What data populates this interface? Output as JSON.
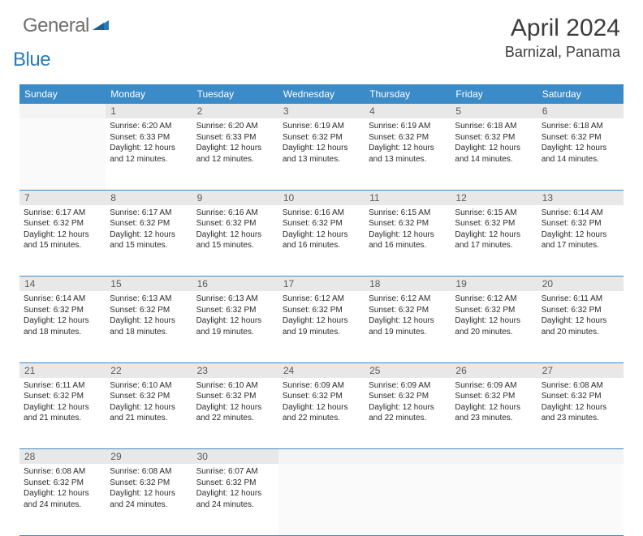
{
  "brand": {
    "word1": "General",
    "word2": "Blue"
  },
  "title": "April 2024",
  "location": "Barnizal, Panama",
  "colors": {
    "header_bg": "#3b8bc8",
    "header_fg": "#ffffff",
    "daynum_bg": "#e8e8e8",
    "daynum_fg": "#5a5a5a",
    "rule": "#3b8bc8",
    "text": "#2b2b2b",
    "logo_gray": "#6f6f6f",
    "logo_blue": "#2a7ab9"
  },
  "weekdays": [
    "Sunday",
    "Monday",
    "Tuesday",
    "Wednesday",
    "Thursday",
    "Friday",
    "Saturday"
  ],
  "weeks": [
    {
      "nums": [
        "",
        "1",
        "2",
        "3",
        "4",
        "5",
        "6"
      ],
      "cells": [
        null,
        {
          "sr": "Sunrise: 6:20 AM",
          "ss": "Sunset: 6:33 PM",
          "d1": "Daylight: 12 hours",
          "d2": "and 12 minutes."
        },
        {
          "sr": "Sunrise: 6:20 AM",
          "ss": "Sunset: 6:33 PM",
          "d1": "Daylight: 12 hours",
          "d2": "and 12 minutes."
        },
        {
          "sr": "Sunrise: 6:19 AM",
          "ss": "Sunset: 6:32 PM",
          "d1": "Daylight: 12 hours",
          "d2": "and 13 minutes."
        },
        {
          "sr": "Sunrise: 6:19 AM",
          "ss": "Sunset: 6:32 PM",
          "d1": "Daylight: 12 hours",
          "d2": "and 13 minutes."
        },
        {
          "sr": "Sunrise: 6:18 AM",
          "ss": "Sunset: 6:32 PM",
          "d1": "Daylight: 12 hours",
          "d2": "and 14 minutes."
        },
        {
          "sr": "Sunrise: 6:18 AM",
          "ss": "Sunset: 6:32 PM",
          "d1": "Daylight: 12 hours",
          "d2": "and 14 minutes."
        }
      ]
    },
    {
      "nums": [
        "7",
        "8",
        "9",
        "10",
        "11",
        "12",
        "13"
      ],
      "cells": [
        {
          "sr": "Sunrise: 6:17 AM",
          "ss": "Sunset: 6:32 PM",
          "d1": "Daylight: 12 hours",
          "d2": "and 15 minutes."
        },
        {
          "sr": "Sunrise: 6:17 AM",
          "ss": "Sunset: 6:32 PM",
          "d1": "Daylight: 12 hours",
          "d2": "and 15 minutes."
        },
        {
          "sr": "Sunrise: 6:16 AM",
          "ss": "Sunset: 6:32 PM",
          "d1": "Daylight: 12 hours",
          "d2": "and 15 minutes."
        },
        {
          "sr": "Sunrise: 6:16 AM",
          "ss": "Sunset: 6:32 PM",
          "d1": "Daylight: 12 hours",
          "d2": "and 16 minutes."
        },
        {
          "sr": "Sunrise: 6:15 AM",
          "ss": "Sunset: 6:32 PM",
          "d1": "Daylight: 12 hours",
          "d2": "and 16 minutes."
        },
        {
          "sr": "Sunrise: 6:15 AM",
          "ss": "Sunset: 6:32 PM",
          "d1": "Daylight: 12 hours",
          "d2": "and 17 minutes."
        },
        {
          "sr": "Sunrise: 6:14 AM",
          "ss": "Sunset: 6:32 PM",
          "d1": "Daylight: 12 hours",
          "d2": "and 17 minutes."
        }
      ]
    },
    {
      "nums": [
        "14",
        "15",
        "16",
        "17",
        "18",
        "19",
        "20"
      ],
      "cells": [
        {
          "sr": "Sunrise: 6:14 AM",
          "ss": "Sunset: 6:32 PM",
          "d1": "Daylight: 12 hours",
          "d2": "and 18 minutes."
        },
        {
          "sr": "Sunrise: 6:13 AM",
          "ss": "Sunset: 6:32 PM",
          "d1": "Daylight: 12 hours",
          "d2": "and 18 minutes."
        },
        {
          "sr": "Sunrise: 6:13 AM",
          "ss": "Sunset: 6:32 PM",
          "d1": "Daylight: 12 hours",
          "d2": "and 19 minutes."
        },
        {
          "sr": "Sunrise: 6:12 AM",
          "ss": "Sunset: 6:32 PM",
          "d1": "Daylight: 12 hours",
          "d2": "and 19 minutes."
        },
        {
          "sr": "Sunrise: 6:12 AM",
          "ss": "Sunset: 6:32 PM",
          "d1": "Daylight: 12 hours",
          "d2": "and 19 minutes."
        },
        {
          "sr": "Sunrise: 6:12 AM",
          "ss": "Sunset: 6:32 PM",
          "d1": "Daylight: 12 hours",
          "d2": "and 20 minutes."
        },
        {
          "sr": "Sunrise: 6:11 AM",
          "ss": "Sunset: 6:32 PM",
          "d1": "Daylight: 12 hours",
          "d2": "and 20 minutes."
        }
      ]
    },
    {
      "nums": [
        "21",
        "22",
        "23",
        "24",
        "25",
        "26",
        "27"
      ],
      "cells": [
        {
          "sr": "Sunrise: 6:11 AM",
          "ss": "Sunset: 6:32 PM",
          "d1": "Daylight: 12 hours",
          "d2": "and 21 minutes."
        },
        {
          "sr": "Sunrise: 6:10 AM",
          "ss": "Sunset: 6:32 PM",
          "d1": "Daylight: 12 hours",
          "d2": "and 21 minutes."
        },
        {
          "sr": "Sunrise: 6:10 AM",
          "ss": "Sunset: 6:32 PM",
          "d1": "Daylight: 12 hours",
          "d2": "and 22 minutes."
        },
        {
          "sr": "Sunrise: 6:09 AM",
          "ss": "Sunset: 6:32 PM",
          "d1": "Daylight: 12 hours",
          "d2": "and 22 minutes."
        },
        {
          "sr": "Sunrise: 6:09 AM",
          "ss": "Sunset: 6:32 PM",
          "d1": "Daylight: 12 hours",
          "d2": "and 22 minutes."
        },
        {
          "sr": "Sunrise: 6:09 AM",
          "ss": "Sunset: 6:32 PM",
          "d1": "Daylight: 12 hours",
          "d2": "and 23 minutes."
        },
        {
          "sr": "Sunrise: 6:08 AM",
          "ss": "Sunset: 6:32 PM",
          "d1": "Daylight: 12 hours",
          "d2": "and 23 minutes."
        }
      ]
    },
    {
      "nums": [
        "28",
        "29",
        "30",
        "",
        "",
        "",
        ""
      ],
      "cells": [
        {
          "sr": "Sunrise: 6:08 AM",
          "ss": "Sunset: 6:32 PM",
          "d1": "Daylight: 12 hours",
          "d2": "and 24 minutes."
        },
        {
          "sr": "Sunrise: 6:08 AM",
          "ss": "Sunset: 6:32 PM",
          "d1": "Daylight: 12 hours",
          "d2": "and 24 minutes."
        },
        {
          "sr": "Sunrise: 6:07 AM",
          "ss": "Sunset: 6:32 PM",
          "d1": "Daylight: 12 hours",
          "d2": "and 24 minutes."
        },
        null,
        null,
        null,
        null
      ]
    }
  ]
}
